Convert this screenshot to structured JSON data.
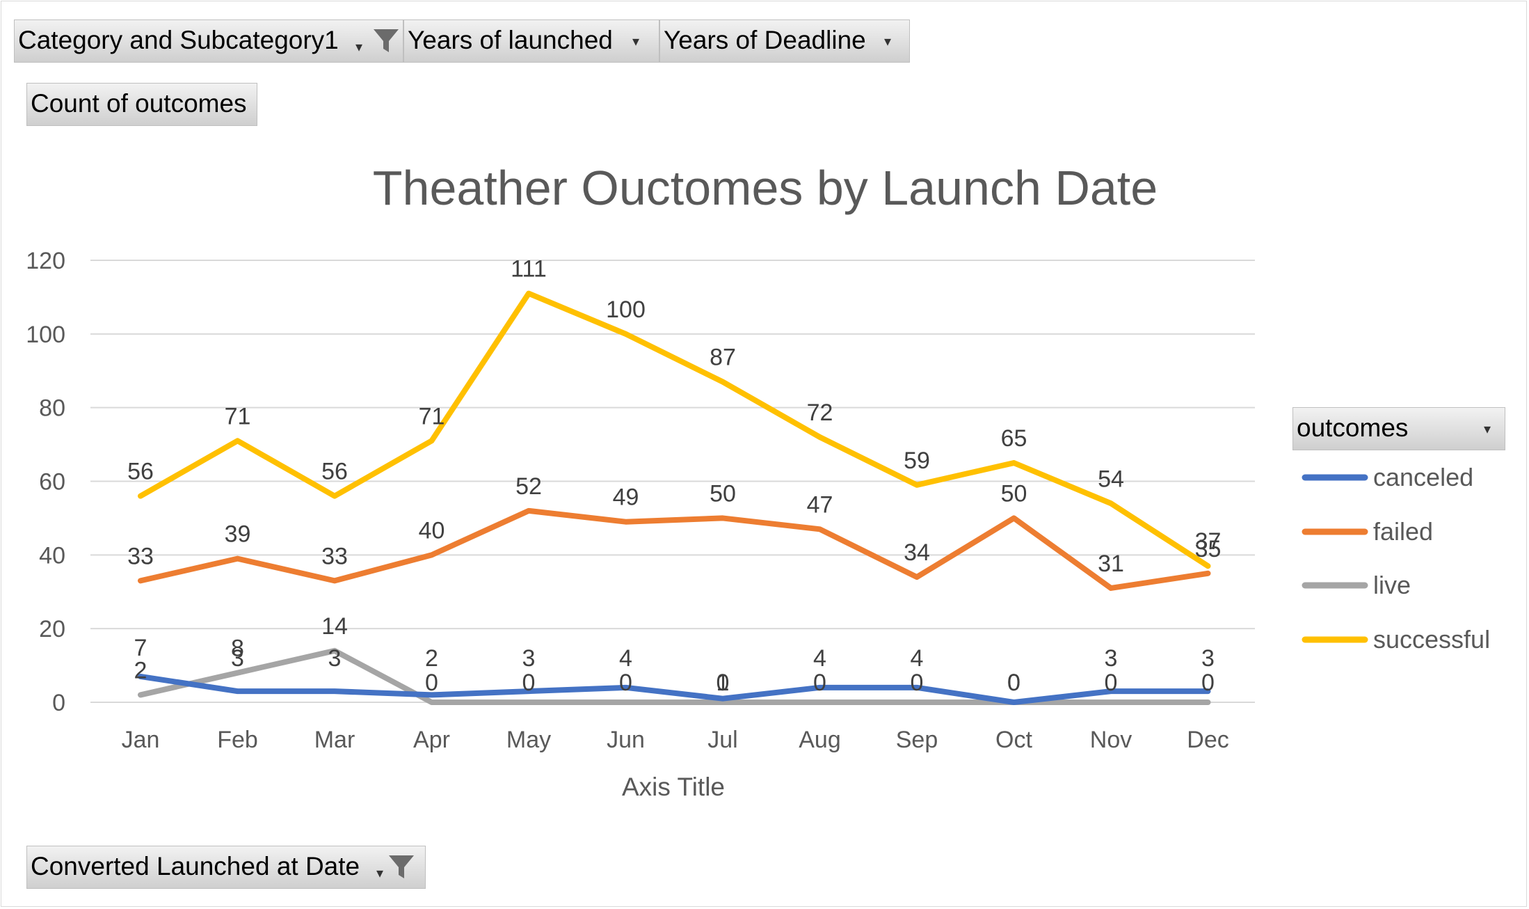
{
  "filters": {
    "category": "Category and Subcategory1",
    "launched": "Years of launched",
    "deadline": "Years of Deadline"
  },
  "value_field": "Count of outcomes",
  "axis_field": "Converted Launched at Date",
  "legend_field": "outcomes",
  "colors": {
    "canceled": "#4472C4",
    "failed": "#ED7D31",
    "live": "#A5A5A5",
    "successful": "#FFC000",
    "grid": "#d9d9d9"
  },
  "icons": {
    "filter": "funnel-icon",
    "dropdown": "dropdown-arrow-icon"
  },
  "chart_data": {
    "type": "line",
    "title": "Theather Ouctomes by Launch Date",
    "xlabel": "Axis Title",
    "ylabel": "",
    "ylim": [
      0,
      120
    ],
    "yticks": [
      0,
      20,
      40,
      60,
      80,
      100,
      120
    ],
    "grid": true,
    "legend_position": "right",
    "categories": [
      "Jan",
      "Feb",
      "Mar",
      "Apr",
      "May",
      "Jun",
      "Jul",
      "Aug",
      "Sep",
      "Oct",
      "Nov",
      "Dec"
    ],
    "series": [
      {
        "name": "canceled",
        "values": [
          7,
          3,
          3,
          2,
          3,
          4,
          1,
          4,
          4,
          0,
          3,
          3
        ]
      },
      {
        "name": "failed",
        "values": [
          33,
          39,
          33,
          40,
          52,
          49,
          50,
          47,
          34,
          50,
          31,
          35
        ]
      },
      {
        "name": "live",
        "values": [
          2,
          8,
          14,
          0,
          0,
          0,
          0,
          0,
          0,
          0,
          0,
          0
        ]
      },
      {
        "name": "successful",
        "values": [
          56,
          71,
          56,
          71,
          111,
          100,
          87,
          72,
          59,
          65,
          54,
          37
        ]
      }
    ]
  }
}
